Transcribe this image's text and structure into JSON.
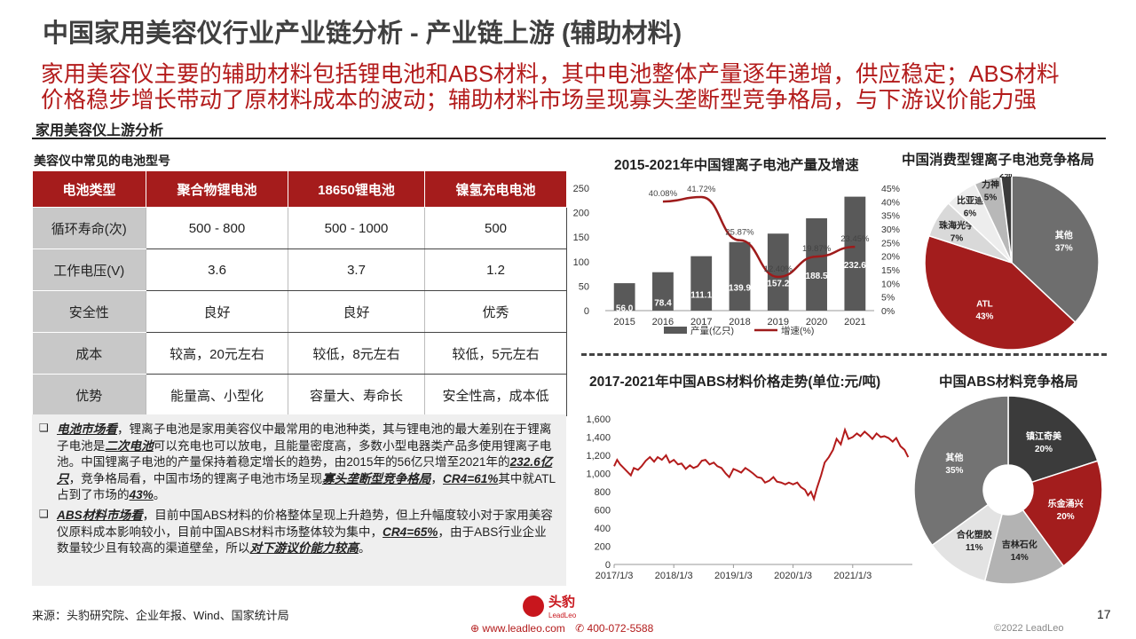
{
  "header": {
    "title": "中国家用美容仪行业产业链分析 - 产业链上游 (辅助材料)",
    "subtitle_line1": "家用美容仪主要的辅助材料包括锂电池和ABS材料，其中电池整体产量逐年递增，供应稳定；ABS材料",
    "subtitle_line2": "价格稳步增长带动了原材料成本的波动；辅助材料市场呈现寡头垄断型竞争格局，与下游议价能力强"
  },
  "section_title": "家用美容仪上游分析",
  "battery_table": {
    "title": "美容仪中常见的电池型号",
    "headers": [
      "电池类型",
      "聚合物锂电池",
      "18650锂电池",
      "镍氢充电电池"
    ],
    "rows": [
      [
        "循环寿命(次)",
        "500 - 800",
        "500 - 1000",
        "500"
      ],
      [
        "工作电压(V)",
        "3.6",
        "3.7",
        "1.2"
      ],
      [
        "安全性",
        "良好",
        "良好",
        "优秀"
      ],
      [
        "成本",
        "较高，20元左右",
        "较低，8元左右",
        "较低，5元左右"
      ],
      [
        "优势",
        "能量高、小型化",
        "容量大、寿命长",
        "安全性高，成本低"
      ]
    ]
  },
  "notes": {
    "bullet": "❑",
    "p1": {
      "lead": "电池市场看",
      "t1": "，锂离子电池是家用美容仪中最常用的电池种类，其与锂电池的最大差别在于锂离子电池是",
      "e1": "二次电池",
      "t2": "可以充电也可以放电，且能量密度高，多数小型电器类产品多使用锂离子电池。中国锂离子电池的产量保持着稳定增长的趋势，由2015年的56亿只增至2021年的",
      "e2": "232.6亿只",
      "t3": "，竞争格局看，中国市场的锂离子电池市场呈现",
      "e3": "寡头垄断型竞争格局",
      "t4": "，",
      "e4": "CR4=61%",
      "t5": "其中就ATL占到了市场的",
      "e5": "43%",
      "t6": "。"
    },
    "p2": {
      "lead": "ABS材料市场看",
      "t1": "，目前中国ABS材料的价格整体呈现上升趋势，但上升幅度较小对于家用美容仪原料成本影响较小，目前中国ABS材料市场整体较为集中，",
      "e1": "CR4=65%",
      "t2": "，由于ABS行业企业数量较少且有较高的渠道壁垒，所以",
      "e2": "对下游议价能力较高",
      "t3": "。"
    }
  },
  "chart_titles": {
    "battery_output": "2015-2021年中国锂离子电池产量及增速",
    "li_share": "中国消费型锂离子电池竞争格局",
    "abs_price": "2017-2021年中国ABS材料价格走势(单位:元/吨)",
    "abs_share": "中国ABS材料竞争格局"
  },
  "chart_data": [
    {
      "type": "bar",
      "title": "2015-2021年中国锂离子电池产量及增速",
      "categories": [
        "2015",
        "2016",
        "2017",
        "2018",
        "2019",
        "2020",
        "2021"
      ],
      "series": [
        {
          "name": "产量(亿只)",
          "type": "bar",
          "values": [
            56.0,
            78.4,
            111.1,
            139.9,
            157.2,
            188.5,
            232.6
          ]
        },
        {
          "name": "增速(%)",
          "type": "line",
          "values": [
            null,
            40.08,
            41.72,
            25.87,
            12.4,
            19.87,
            23.45
          ]
        }
      ],
      "y_left_ticks": [
        "0",
        "50",
        "100",
        "150",
        "200",
        "250"
      ],
      "y_right_ticks": [
        "0%",
        "5%",
        "10%",
        "15%",
        "20%",
        "25%",
        "30%",
        "35%",
        "40%",
        "45%"
      ],
      "ylim": [
        0,
        250
      ],
      "y2lim": [
        0,
        45
      ],
      "legend_placement": "bottom",
      "colors": {
        "bar": "#595959",
        "line": "#9e1b1b"
      }
    },
    {
      "type": "pie",
      "title": "中国消费型锂离子电池竞争格局",
      "slices": [
        {
          "label": "其他",
          "value": 37,
          "display": "37%",
          "color": "#6e6e6e"
        },
        {
          "label": "ATL",
          "value": 43,
          "display": "43%",
          "color": "#a31d1d"
        },
        {
          "label": "珠海光宇",
          "value": 7,
          "display": "7%",
          "color": "#d9d9d9"
        },
        {
          "label": "比亚迪",
          "value": 6,
          "display": "6%",
          "color": "#ededed"
        },
        {
          "label": "力神",
          "value": 5,
          "display": "5%",
          "color": "#b8b8b8"
        },
        {
          "label": "卓能",
          "value": 2,
          "display": "2%",
          "color": "#3a3a3a"
        }
      ]
    },
    {
      "type": "line",
      "title": "2017-2021年中国ABS材料价格走势(单位:元/吨)",
      "x_ticks": [
        "2017/1/3",
        "2018/1/3",
        "2019/1/3",
        "2020/1/3",
        "2021/1/3"
      ],
      "y_ticks": [
        "0",
        "200",
        "400",
        "600",
        "800",
        "1,000",
        "1,200",
        "1,400",
        "1,600"
      ],
      "ylim": [
        0,
        1600
      ],
      "series": [
        {
          "name": "",
          "color": "#b31b1b",
          "x": [
            2017.0,
            2017.05,
            2017.1,
            2017.16,
            2017.22,
            2017.28,
            2017.33,
            2017.4,
            2017.46,
            2017.53,
            2017.6,
            2017.67,
            2017.73,
            2017.8,
            2017.87,
            2017.93,
            2018.0,
            2018.07,
            2018.13,
            2018.2,
            2018.27,
            2018.33,
            2018.4,
            2018.47,
            2018.53,
            2018.6,
            2018.67,
            2018.73,
            2018.8,
            2018.87,
            2018.93,
            2019.0,
            2019.07,
            2019.13,
            2019.2,
            2019.27,
            2019.33,
            2019.4,
            2019.47,
            2019.53,
            2019.6,
            2019.67,
            2019.73,
            2019.8,
            2019.87,
            2019.93,
            2020.0,
            2020.07,
            2020.13,
            2020.2,
            2020.25,
            2020.3,
            2020.35,
            2020.4,
            2020.47,
            2020.53,
            2020.6,
            2020.67,
            2020.73,
            2020.8,
            2020.87,
            2020.93,
            2021.0,
            2021.07,
            2021.13,
            2021.2,
            2021.27,
            2021.33,
            2021.4,
            2021.47,
            2021.53,
            2021.6,
            2021.67,
            2021.73,
            2021.8,
            2021.87,
            2021.93
          ],
          "y": [
            1080,
            1150,
            1100,
            1060,
            1020,
            980,
            1060,
            1040,
            1080,
            1140,
            1180,
            1130,
            1180,
            1150,
            1200,
            1120,
            1150,
            1100,
            1110,
            1050,
            1090,
            1060,
            1080,
            1140,
            1150,
            1100,
            1120,
            1080,
            1060,
            1000,
            960,
            1050,
            1030,
            1010,
            1060,
            1030,
            1000,
            960,
            950,
            900,
            920,
            960,
            910,
            900,
            880,
            900,
            880,
            900,
            850,
            820,
            760,
            800,
            720,
            840,
            980,
            1120,
            1180,
            1260,
            1380,
            1320,
            1480,
            1380,
            1400,
            1440,
            1410,
            1460,
            1420,
            1380,
            1440,
            1400,
            1410,
            1390,
            1350,
            1390,
            1300,
            1260,
            1180
          ]
        }
      ]
    },
    {
      "type": "pie",
      "title": "中国ABS材料竞争格局",
      "donut": true,
      "slices": [
        {
          "label": "镇江奇美",
          "value": 20,
          "display": "20%",
          "color": "#3b3b3b"
        },
        {
          "label": "乐金涌兴",
          "value": 20,
          "display": "20%",
          "color": "#a31d1d"
        },
        {
          "label": "吉林石化",
          "value": 14,
          "display": "14%",
          "color": "#b3b3b3"
        },
        {
          "label": "合化塑胶",
          "value": 11,
          "display": "11%",
          "color": "#e3e3e3"
        },
        {
          "label": "其他",
          "value": 35,
          "display": "35%",
          "color": "#737373"
        }
      ]
    }
  ],
  "footer": {
    "source": "来源：头豹研究院、企业年报、Wind、国家统计局",
    "brand_cn": "头豹",
    "brand_en": "LeadLeo",
    "website": "www.leadleo.com",
    "phone": "400-072-5588",
    "page_number": "17",
    "copyright": "©2022 LeadLeo"
  }
}
